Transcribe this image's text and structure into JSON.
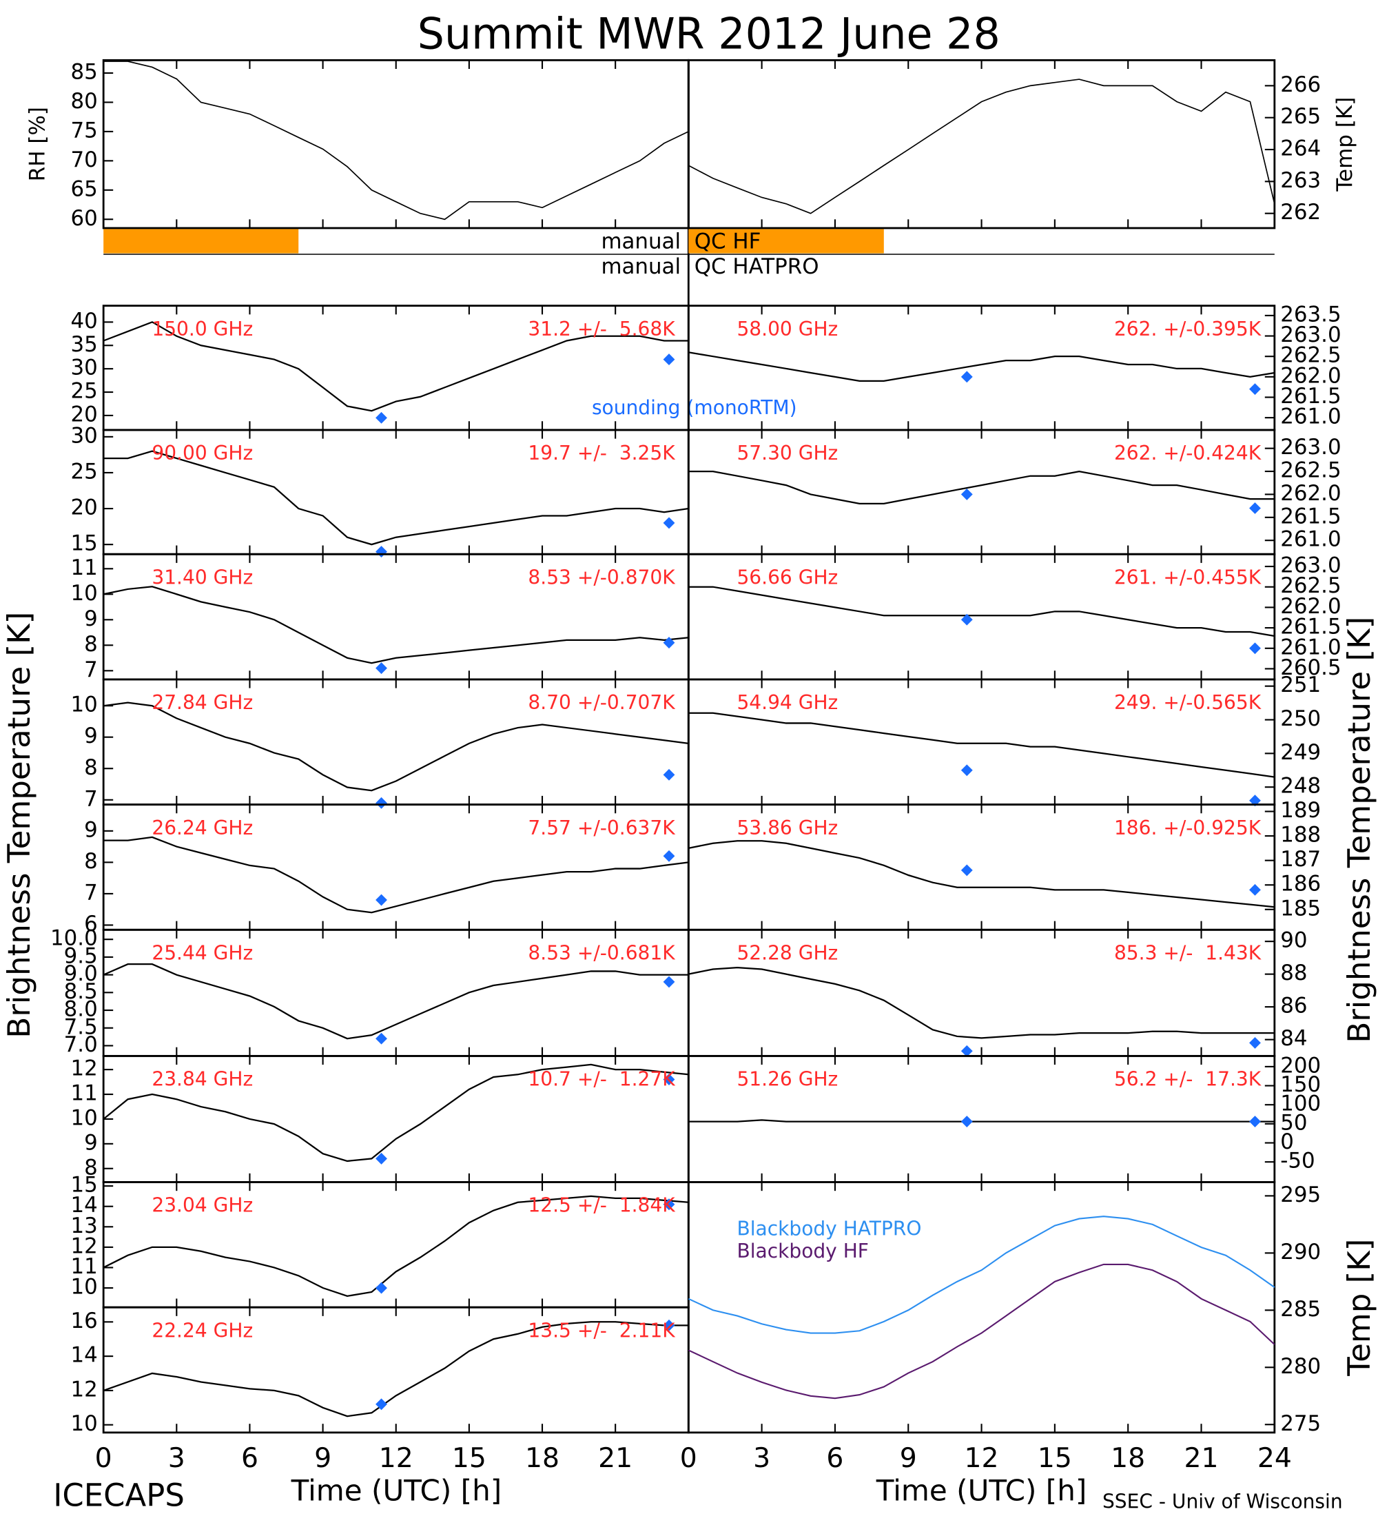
{
  "title": "Summit MWR 2012 June 28",
  "footer_left": "ICECAPS",
  "footer_right": "SSEC - Univ of Wisconsin",
  "y_label": "Brightness Temperature [K]",
  "sounding_label": "sounding (monoRTM)",
  "sounding_color": "#1a6cff",
  "label_color": "#ff2a2a",
  "time_axis": {
    "label": "Time (UTC) [h]",
    "xlim": [
      0,
      24
    ],
    "x": [
      0,
      1,
      2,
      3,
      4,
      5,
      6,
      7,
      8,
      9,
      10,
      11,
      12,
      13,
      14,
      15,
      16,
      17,
      18,
      19,
      20,
      21,
      22,
      23,
      24
    ],
    "xticks_left": [
      0,
      3,
      6,
      9,
      12,
      15,
      18,
      21
    ],
    "xticks_right": [
      0,
      3,
      6,
      9,
      12,
      15,
      18,
      21,
      24
    ]
  },
  "qc": {
    "color": "#ff9900",
    "rows": [
      {
        "left_label": "manual",
        "right_label": "QC HF",
        "left_spans": [
          [
            0,
            8
          ]
        ],
        "right_spans": [
          [
            0,
            8
          ]
        ]
      },
      {
        "left_label": "manual",
        "right_label": "QC HATPRO",
        "left_spans": [],
        "right_spans": []
      }
    ]
  },
  "chart_data": [
    {
      "type": "line",
      "y_label": "RH [%]",
      "ylim": [
        58.5,
        87.2
      ],
      "yticks": [
        60,
        65,
        70,
        75,
        80,
        85
      ],
      "color": "#000000",
      "values": [
        87,
        87,
        86,
        84,
        80,
        79,
        78,
        76,
        74,
        72,
        69,
        65,
        63,
        61,
        60,
        63,
        63,
        63,
        62,
        64,
        66,
        68,
        70,
        73,
        75
      ]
    },
    {
      "type": "line",
      "y_label": "Temp [K]",
      "ylim": [
        261.54,
        266.8
      ],
      "yticks": [
        262,
        263,
        264,
        265,
        266
      ],
      "color": "#000000",
      "values": [
        263.5,
        263.1,
        262.8,
        262.5,
        262.3,
        262.0,
        262.5,
        263,
        263.5,
        264,
        264.5,
        265,
        265.5,
        265.8,
        266,
        266.1,
        266.2,
        266,
        266,
        266,
        265.5,
        265.2,
        265.8,
        265.5,
        262.3
      ]
    },
    {
      "type": "channel",
      "frequency": "150.0 GHz",
      "stats": "31.2 +/-  5.68K",
      "ylim": [
        16.9,
        43.5
      ],
      "yticks": [
        20,
        25,
        30,
        35,
        40
      ],
      "values": [
        36,
        38,
        40,
        37,
        35,
        34,
        33,
        32,
        30,
        26,
        22,
        21,
        23,
        24,
        26,
        28,
        30,
        32,
        34,
        36,
        37,
        37,
        37,
        36,
        36
      ],
      "sounding": {
        "x": [
          11.4,
          23.2
        ],
        "values": [
          19.5,
          32
        ]
      }
    },
    {
      "type": "channel",
      "frequency": "90.00 GHz",
      "stats": "19.7 +/-  3.25K",
      "ylim": [
        13.65,
        30.95
      ],
      "yticks": [
        15,
        20,
        25,
        30
      ],
      "values": [
        27,
        27,
        28,
        27,
        26,
        25,
        24,
        23,
        20,
        19,
        16,
        15,
        16,
        16.5,
        17,
        17.5,
        18,
        18.5,
        19,
        19,
        19.5,
        20,
        20,
        19.5,
        20
      ],
      "sounding": {
        "x": [
          11.4,
          23.2
        ],
        "values": [
          14,
          18
        ]
      }
    },
    {
      "type": "channel",
      "frequency": "31.40 GHz",
      "stats": "8.53 +/-0.870K",
      "ylim": [
        6.66,
        11.57
      ],
      "yticks": [
        7,
        8,
        9,
        10,
        11
      ],
      "values": [
        10,
        10.2,
        10.3,
        10,
        9.7,
        9.5,
        9.3,
        9,
        8.5,
        8,
        7.5,
        7.3,
        7.5,
        7.6,
        7.7,
        7.8,
        7.9,
        8,
        8.1,
        8.2,
        8.2,
        8.2,
        8.3,
        8.2,
        8.3
      ],
      "sounding": {
        "x": [
          11.4,
          23.2
        ],
        "values": [
          7.1,
          8.1
        ]
      }
    },
    {
      "type": "channel",
      "frequency": "27.84 GHz",
      "stats": "8.70 +/-0.707K",
      "ylim": [
        6.85,
        10.84
      ],
      "yticks": [
        7,
        8,
        9,
        10
      ],
      "values": [
        10,
        10.1,
        10,
        9.6,
        9.3,
        9,
        8.8,
        8.5,
        8.3,
        7.8,
        7.4,
        7.3,
        7.6,
        8,
        8.4,
        8.8,
        9.1,
        9.3,
        9.4,
        9.3,
        9.2,
        9.1,
        9.0,
        8.9,
        8.8
      ],
      "sounding": {
        "x": [
          11.4,
          23.2
        ],
        "values": [
          6.9,
          7.8
        ]
      }
    },
    {
      "type": "channel",
      "frequency": "26.24 GHz",
      "stats": "7.57 +/-0.637K",
      "ylim": [
        5.85,
        9.84
      ],
      "yticks": [
        6,
        7,
        8,
        9
      ],
      "values": [
        8.7,
        8.7,
        8.8,
        8.5,
        8.3,
        8.1,
        7.9,
        7.8,
        7.4,
        6.9,
        6.5,
        6.4,
        6.6,
        6.8,
        7.0,
        7.2,
        7.4,
        7.5,
        7.6,
        7.7,
        7.7,
        7.8,
        7.8,
        7.9,
        8
      ],
      "sounding": {
        "x": [
          11.4,
          23.2
        ],
        "values": [
          6.8,
          8.2
        ]
      }
    },
    {
      "type": "channel",
      "frequency": "25.44 GHz",
      "stats": "8.53 +/-0.681K",
      "ylim": [
        6.71,
        10.27
      ],
      "yticks": [
        {
          "value": 7,
          "label": "7.0"
        },
        7.5,
        {
          "value": 8,
          "label": "8.0"
        },
        8.5,
        {
          "value": 9,
          "label": "9.0"
        },
        9.5,
        {
          "value": 10,
          "label": "10.0"
        }
      ],
      "values": [
        9,
        9.3,
        9.3,
        9,
        8.8,
        8.6,
        8.4,
        8.1,
        7.7,
        7.5,
        7.2,
        7.3,
        7.6,
        7.9,
        8.2,
        8.5,
        8.7,
        8.8,
        8.9,
        9,
        9.1,
        9.1,
        9.0,
        9.0,
        9.0
      ],
      "sounding": {
        "x": [
          11.4,
          23.2
        ],
        "values": [
          7.2,
          8.8
        ]
      }
    },
    {
      "type": "channel",
      "frequency": "23.84 GHz",
      "stats": "10.7 +/-  1.27K",
      "ylim": [
        7.45,
        12.55
      ],
      "yticks": [
        8,
        9,
        10,
        11,
        12
      ],
      "values": [
        10,
        10.8,
        11,
        10.8,
        10.5,
        10.3,
        10,
        9.8,
        9.3,
        8.6,
        8.3,
        8.4,
        9.2,
        9.8,
        10.5,
        11.2,
        11.7,
        11.8,
        12,
        12.1,
        12.2,
        12,
        12,
        11.9,
        11.8
      ],
      "sounding": {
        "x": [
          11.4,
          23.2
        ],
        "values": [
          8.4,
          11.6
        ]
      }
    },
    {
      "type": "channel",
      "frequency": "23.04 GHz",
      "stats": "12.5 +/-  1.84K",
      "ylim": [
        9.05,
        15.19
      ],
      "yticks": [
        10,
        11,
        12,
        13,
        14,
        15
      ],
      "values": [
        11,
        11.6,
        12,
        12,
        11.8,
        11.5,
        11.3,
        11,
        10.6,
        10,
        9.6,
        9.8,
        10.8,
        11.5,
        12.3,
        13.2,
        13.8,
        14.2,
        14.3,
        14.4,
        14.5,
        14.4,
        14.4,
        14.3,
        14.2
      ],
      "sounding": {
        "x": [
          11.4,
          23.2
        ],
        "values": [
          10.0,
          14.1
        ]
      }
    },
    {
      "type": "channel",
      "frequency": "22.24 GHz",
      "stats": "13.5 +/-  2.11K",
      "ylim": [
        9.55,
        16.85
      ],
      "yticks": [
        10,
        12,
        14,
        16
      ],
      "values": [
        12,
        12.5,
        13,
        12.8,
        12.5,
        12.3,
        12.1,
        12,
        11.7,
        11,
        10.5,
        10.7,
        11.7,
        12.5,
        13.3,
        14.3,
        15,
        15.3,
        15.7,
        15.9,
        16,
        16,
        15.9,
        15.8,
        15.8
      ],
      "sounding": {
        "x": [
          11.4,
          23.2
        ],
        "values": [
          11.2,
          15.8
        ]
      }
    },
    {
      "type": "channel",
      "frequency": "58.00 GHz",
      "stats": "262. +/-0.395K",
      "ylim": [
        260.7,
        263.74
      ],
      "yticks": [
        {
          "value": 261,
          "label": "261.0"
        },
        261.5,
        {
          "value": 262,
          "label": "262.0"
        },
        262.5,
        {
          "value": 263,
          "label": "263.0"
        },
        263.5
      ],
      "values": [
        262.6,
        262.5,
        262.4,
        262.3,
        262.2,
        262.1,
        262.0,
        261.9,
        261.9,
        262.0,
        262.1,
        262.2,
        262.3,
        262.4,
        262.4,
        262.5,
        262.5,
        262.4,
        262.3,
        262.3,
        262.2,
        262.2,
        262.1,
        262.0,
        262.1
      ],
      "sounding": {
        "x": [
          11.4,
          23.2
        ],
        "values": [
          262.0,
          261.7
        ]
      }
    },
    {
      "type": "channel",
      "frequency": "57.30 GHz",
      "stats": "262. +/-0.424K",
      "ylim": [
        260.7,
        263.4
      ],
      "yticks": [
        {
          "value": 261,
          "label": "261.0"
        },
        261.5,
        {
          "value": 262,
          "label": "262.0"
        },
        262.5,
        {
          "value": 263,
          "label": "263.0"
        }
      ],
      "values": [
        262.5,
        262.5,
        262.4,
        262.3,
        262.2,
        262.0,
        261.9,
        261.8,
        261.8,
        261.9,
        262.0,
        262.1,
        262.2,
        262.3,
        262.4,
        262.4,
        262.5,
        262.4,
        262.3,
        262.2,
        262.2,
        262.1,
        262.0,
        261.9,
        261.9
      ],
      "sounding": {
        "x": [
          11.4,
          23.2
        ],
        "values": [
          262.0,
          261.7
        ]
      }
    },
    {
      "type": "channel",
      "frequency": "56.66 GHz",
      "stats": "261. +/-0.455K",
      "ylim": [
        260.24,
        263.3
      ],
      "yticks": [
        260.5,
        {
          "value": 261,
          "label": "261.0"
        },
        261.5,
        {
          "value": 262,
          "label": "262.0"
        },
        262.5,
        {
          "value": 263,
          "label": "263.0"
        }
      ],
      "values": [
        262.5,
        262.5,
        262.4,
        262.3,
        262.2,
        262.1,
        262.0,
        261.9,
        261.8,
        261.8,
        261.8,
        261.8,
        261.8,
        261.8,
        261.8,
        261.9,
        261.9,
        261.8,
        261.7,
        261.6,
        261.5,
        261.5,
        261.4,
        261.4,
        261.3
      ],
      "sounding": {
        "x": [
          11.4,
          23.2
        ],
        "values": [
          261.7,
          261.0
        ]
      }
    },
    {
      "type": "channel",
      "frequency": "54.94 GHz",
      "stats": "249. +/-0.565K",
      "ylim": [
        247.48,
        251.2
      ],
      "yticks": [
        248,
        249,
        250,
        251
      ],
      "values": [
        250.2,
        250.2,
        250.1,
        250.0,
        249.9,
        249.9,
        249.8,
        249.7,
        249.6,
        249.5,
        249.4,
        249.3,
        249.3,
        249.3,
        249.2,
        249.2,
        249.1,
        249.0,
        248.9,
        248.8,
        248.7,
        248.6,
        248.5,
        248.4,
        248.3
      ],
      "sounding": {
        "x": [
          11.4,
          23.2
        ],
        "values": [
          248.5,
          247.6
        ]
      }
    },
    {
      "type": "channel",
      "frequency": "53.86 GHz",
      "stats": "186. +/-0.925K",
      "ylim": [
        184.17,
        189.28
      ],
      "yticks": [
        185,
        186,
        187,
        188,
        189
      ],
      "values": [
        187.5,
        187.7,
        187.8,
        187.8,
        187.7,
        187.5,
        187.3,
        187.1,
        186.8,
        186.4,
        186.1,
        185.9,
        185.9,
        185.9,
        185.9,
        185.8,
        185.8,
        185.8,
        185.7,
        185.6,
        185.5,
        185.4,
        185.3,
        185.2,
        185.1
      ],
      "sounding": {
        "x": [
          11.4,
          23.2
        ],
        "values": [
          186.6,
          185.8
        ]
      }
    },
    {
      "type": "channel",
      "frequency": "52.28 GHz",
      "stats": "85.3 +/-  1.43K",
      "ylim": [
        83.0,
        90.71
      ],
      "yticks": [
        84,
        86,
        88,
        90
      ],
      "values": [
        88,
        88.3,
        88.4,
        88.3,
        88,
        87.7,
        87.4,
        87,
        86.4,
        85.5,
        84.6,
        84.2,
        84.1,
        84.2,
        84.3,
        84.3,
        84.4,
        84.4,
        84.4,
        84.5,
        84.5,
        84.4,
        84.4,
        84.4,
        84.4
      ],
      "sounding": {
        "x": [
          11.4,
          23.2
        ],
        "values": [
          83.3,
          83.8
        ]
      }
    },
    {
      "type": "channel",
      "frequency": "51.26 GHz",
      "stats": "56.2 +/-  17.3K",
      "ylim": [
        -103,
        228
      ],
      "yticks": [
        -50,
        0,
        50,
        100,
        150,
        200
      ],
      "values": [
        56,
        56,
        56,
        60,
        56,
        56,
        56,
        56,
        56,
        56,
        56,
        56,
        56,
        56,
        56,
        56,
        56,
        56,
        56,
        56,
        56,
        56,
        56,
        56,
        56
      ],
      "sounding": {
        "x": [
          11.4,
          23.2
        ],
        "values": [
          56,
          56
        ]
      }
    },
    {
      "type": "line",
      "y_label": "Temp [K]",
      "ylim": [
        274.3,
        296.2
      ],
      "yticks": [
        275,
        280,
        285,
        290,
        295
      ],
      "series": [
        {
          "name": "Blackbody HATPRO",
          "color": "#2d8ff0",
          "values": [
            286,
            285,
            284.5,
            283.8,
            283.3,
            283,
            283,
            283.2,
            284,
            285,
            286.3,
            287.5,
            288.5,
            290,
            291.2,
            292.4,
            293,
            293.2,
            293,
            292.5,
            291.5,
            290.5,
            289.8,
            288.5,
            287
          ]
        },
        {
          "name": "Blackbody HF",
          "color": "#5a1a6e",
          "values": [
            281.5,
            280.5,
            279.5,
            278.7,
            278,
            277.5,
            277.3,
            277.6,
            278.3,
            279.5,
            280.5,
            281.8,
            283,
            284.5,
            286,
            287.5,
            288.3,
            289,
            289,
            288.5,
            287.5,
            286,
            285,
            284,
            282
          ]
        }
      ]
    }
  ]
}
